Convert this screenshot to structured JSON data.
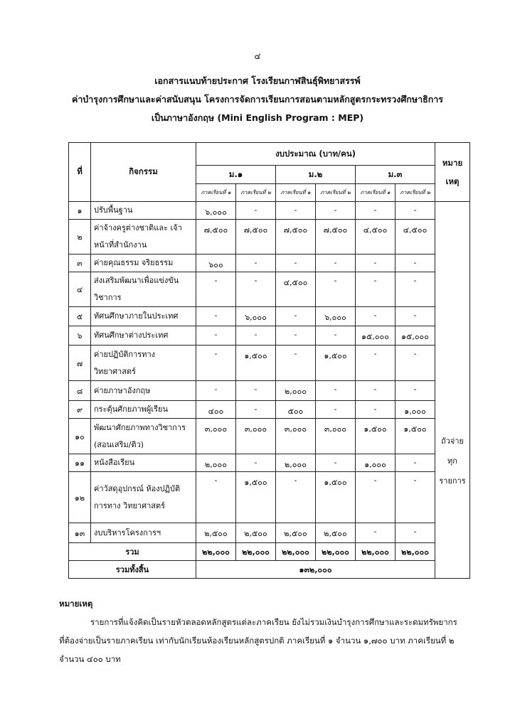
{
  "page_number": "๔",
  "title_lines": [
    "เอกสารแนบท้ายประกาศ โรงเรียนกาฬสินธุ์พิทยาสรรพ์",
    "ค่าบำรุงการศึกษาและค่าสนับสนุน โครงการจัดการเรียนการสอนตามหลักสูตรกระทรวงศึกษาธิการ",
    "เป็นภาษาอังกฤษ (Mini English Program : MEP)"
  ],
  "table": {
    "headers": {
      "no": "ที่",
      "activity": "กิจกรรม",
      "budget": "งบประมาณ (บาท/คน)",
      "remark": "หมาย เหตุ",
      "grades": [
        "ม.๑",
        "ม.๒",
        "ม.๓"
      ],
      "semesters": [
        "ภาคเรียนที่ ๑",
        "ภาคเรียนที่ ๒",
        "ภาคเรียนที่ ๑",
        "ภาคเรียนที่ ๒",
        "ภาคเรียนที่ ๑",
        "ภาคเรียนที่ ๒"
      ]
    },
    "rows": [
      {
        "no": "๑",
        "activity": "ปรับพื้นฐาน",
        "values": [
          "๖,๐๐๐",
          "-",
          "-",
          "-",
          "-",
          "-"
        ]
      },
      {
        "no": "๒",
        "activity": "ค่าจ้างครูต่างชาติและ เจ้าหน้าที่สำนักงาน",
        "values": [
          "๗,๕๐๐",
          "๗,๕๐๐",
          "๗,๕๐๐",
          "๗,๕๐๐",
          "๔,๕๐๐",
          "๔,๕๐๐"
        ]
      },
      {
        "no": "๓",
        "activity": "ค่ายคุณธรรม จริยธรรม",
        "values": [
          "๖๐๐",
          "-",
          "-",
          "-",
          "-",
          "-"
        ]
      },
      {
        "no": "๔",
        "activity": "ส่งเสริมพัฒนาเพื่อแข่งขัน วิชาการ",
        "values": [
          "-",
          "-",
          "๔,๕๐๐",
          "-",
          "-",
          "-"
        ]
      },
      {
        "no": "๕",
        "activity": "ทัศนศึกษาภายในประเทศ",
        "values": [
          "-",
          "๖,๐๐๐",
          "-",
          "๖,๐๐๐",
          "-",
          "-"
        ]
      },
      {
        "no": "๖",
        "activity": "ทัศนศึกษาต่างประเทศ",
        "values": [
          "-",
          "-",
          "-",
          "-",
          "๑๕,๐๐๐",
          "๑๕,๐๐๐"
        ]
      },
      {
        "no": "๗",
        "activity": "ค่ายปฏิบัติการทาง วิทยาศาสตร์",
        "values": [
          "-",
          "๑,๕๐๐",
          "-",
          "๑,๕๐๐",
          "-",
          "-"
        ]
      },
      {
        "no": "๘",
        "activity": "ค่ายภาษาอังกฤษ",
        "values": [
          "-",
          "-",
          "๒,๐๐๐",
          "-",
          "-",
          "-"
        ]
      },
      {
        "no": "๙",
        "activity": "กระตุ้นศักยภาพผู้เรียน",
        "values": [
          "๔๐๐",
          "-",
          "๕๐๐",
          "-",
          "-",
          "๑,๐๐๐"
        ]
      },
      {
        "no": "๑๐",
        "activity": "พัฒนาศักยภาพทางวิชาการ (สอนเสริม/ติว)",
        "values": [
          "๓,๐๐๐",
          "๓,๐๐๐",
          "๓,๐๐๐",
          "๓,๐๐๐",
          "๑,๕๐๐",
          "๑,๕๐๐"
        ]
      },
      {
        "no": "๑๑",
        "activity": "หนังสือเรียน",
        "values": [
          "๒,๐๐๐",
          "-",
          "๒,๐๐๐",
          "-",
          "๑,๐๐๐",
          "-"
        ]
      },
      {
        "no": "๑๒",
        "activity": "ค่าวัสดุอุปกรณ์ ห้องปฏิบัติการทาง วิทยาศาสตร์",
        "values": [
          "-",
          "๑,๕๐๐",
          "-",
          "๑,๕๐๐",
          "-",
          "-"
        ]
      },
      {
        "no": "๑๓",
        "activity": "งบบริหารโครงการฯ",
        "values": [
          "๒,๕๐๐",
          "๒,๕๐๐",
          "๒,๕๐๐",
          "๒,๕๐๐",
          "-",
          "-"
        ]
      }
    ],
    "remark_text": "ถัวจ่าย ทุก รายการ",
    "total_label": "รวม",
    "totals": [
      "๒๒,๐๐๐",
      "๒๒,๐๐๐",
      "๒๒,๐๐๐",
      "๒๒,๐๐๐",
      "๒๒,๐๐๐",
      "๒๒,๐๐๐"
    ],
    "grand_total_label": "รวมทั้งสิ้น",
    "grand_total": "๑๓๒,๐๐๐"
  },
  "notes": {
    "heading": "หมายเหตุ",
    "lines": [
      "รายการที่แจ้งคิดเป็นรายหัวตลอดหลักสูตรแต่ละภาคเรียน ยังไม่รวมเงินบำรุงการศึกษาและระดมทรัพยากร",
      "ที่ต้องจ่ายเป็นรายภาคเรียน เท่ากับนักเรียนห้องเรียนหลักสูตรปกติ ภาคเรียนที่ ๑ จำนวน ๑,๗๐๐ บาท ภาคเรียนที่ ๒",
      "จำนวน ๔๐๐ บาท"
    ]
  }
}
